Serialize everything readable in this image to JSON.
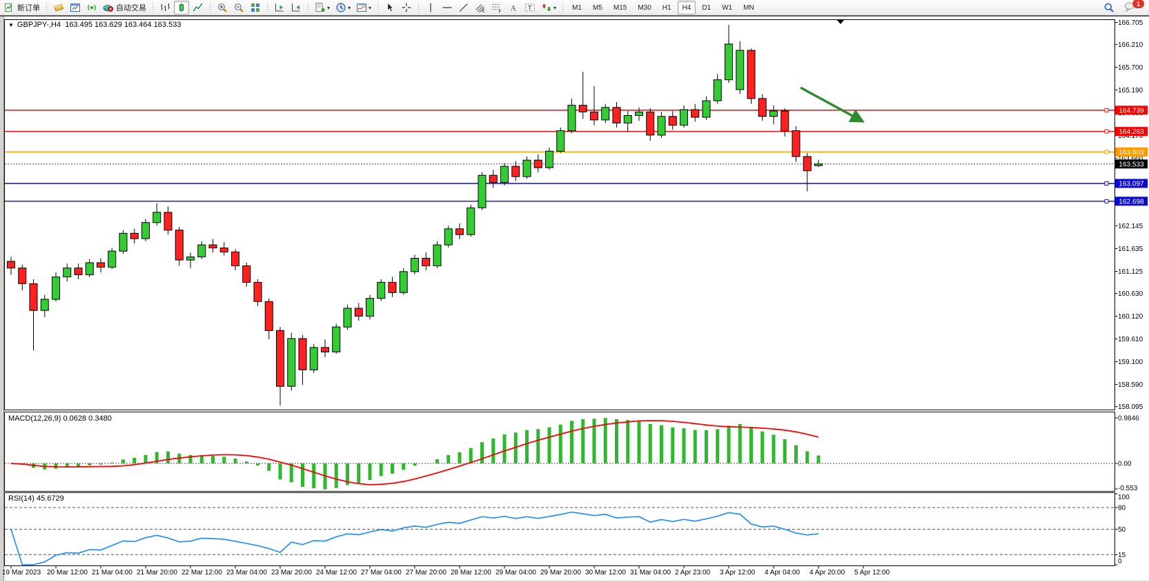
{
  "toolbar": {
    "new_order_label": "新订单",
    "auto_trading_label": "自动交易",
    "icon_groups": [
      [
        "profile",
        "market-window",
        "signal",
        "auto-trading"
      ],
      [
        "bar-chart",
        "candlestick-chart",
        "line-chart"
      ],
      [
        "zoom-in",
        "zoom-out",
        "tile-windows"
      ],
      [
        "shift-end",
        "auto-scroll"
      ],
      [
        "indicators",
        "periods",
        "templates"
      ],
      [
        "cursor",
        "crosshair"
      ],
      [
        "vertical-line",
        "horizontal-line",
        "trendline",
        "channel",
        "fibonacci",
        "text",
        "text-label",
        "arrows"
      ]
    ],
    "timeframes": [
      "M1",
      "M5",
      "M15",
      "M30",
      "H1",
      "H4",
      "D1",
      "W1",
      "MN"
    ],
    "active_timeframe": "H4",
    "active_chart_type": "candlestick-chart",
    "notification_badge": "1"
  },
  "chart": {
    "title_marker": "▼",
    "symbol_period": "GBPJPY-,H4",
    "ohlc_text": "163.495 163.629 163.464 163.533"
  },
  "indicators": {
    "macd_label": "MACD(12,26,9) 0.0628 0.3480",
    "rsi_label": "RSI(14) 45.6729"
  },
  "colors": {
    "bull": "#33cc33",
    "bear": "#ff2020",
    "outline": "#000000",
    "macd_hist": "#2db82d",
    "macd_signal": "#ff0000",
    "rsi_line": "#1e90ff",
    "level_red": "#ff0000",
    "level_orange": "#ff9900",
    "level_blue": "#0a0ad6",
    "current_badge": "#000000",
    "arrow": "#2e8b2e"
  },
  "chart_data": {
    "type": "candlestick",
    "symbol": "GBPJPY-",
    "period": "H4",
    "price_ticks": [
      "166.705",
      "166.210",
      "165.700",
      "165.190",
      "164.680",
      "164.170",
      "163.660",
      "162.145",
      "161.635",
      "161.125",
      "160.630",
      "160.120",
      "159.610",
      "159.100",
      "158.590",
      "158.095"
    ],
    "levels": [
      {
        "price": 164.739,
        "label": "164.739",
        "color_key": "level_red"
      },
      {
        "price": 164.263,
        "label": "164.263",
        "color_key": "level_red"
      },
      {
        "price": 163.803,
        "label": "163.803",
        "color_key": "level_orange"
      },
      {
        "price": 163.097,
        "label": "163.097",
        "color_key": "level_blue"
      },
      {
        "price": 162.698,
        "label": "162.698",
        "color_key": "level_blue"
      }
    ],
    "current_price": {
      "price": 163.533,
      "label": "163.533"
    },
    "macd_axis": [
      [
        "0.9846",
        0.9846
      ],
      [
        "0.00",
        0.0
      ],
      [
        "-0.553",
        -0.553
      ]
    ],
    "rsi_axis": [
      [
        "100",
        100
      ],
      [
        "80",
        80
      ],
      [
        "50",
        50
      ],
      [
        "15",
        15
      ],
      [
        "0",
        0
      ]
    ],
    "rsi_levels": [
      80,
      50,
      15
    ],
    "macd_params": [
      12,
      26,
      9
    ],
    "rsi_period": 14,
    "time_labels": [
      "19 Mar 2023",
      "20 Mar 12:00",
      "21 Mar 04:00",
      "21 Mar 20:00",
      "22 Mar 12:00",
      "23 Mar 04:00",
      "23 Mar 20:00",
      "24 Mar 12:00",
      "27 Mar 04:00",
      "27 Mar 20:00",
      "28 Mar 12:00",
      "29 Mar 04:00",
      "29 Mar 20:00",
      "30 Mar 12:00",
      "31 Mar 04:00",
      "2 Apr 23:00",
      "3 Apr 12:00",
      "4 Apr 04:00",
      "4 Apr 20:00",
      "5 Apr 12:00"
    ],
    "bars_per_label": 4,
    "ohlc": [
      [
        161.35,
        161.45,
        161.05,
        161.2
      ],
      [
        161.2,
        161.28,
        160.7,
        160.85
      ],
      [
        160.85,
        160.95,
        159.35,
        160.25
      ],
      [
        160.25,
        160.6,
        160.1,
        160.5
      ],
      [
        160.5,
        161.1,
        160.45,
        161.0
      ],
      [
        161.0,
        161.3,
        160.9,
        161.2
      ],
      [
        161.2,
        161.3,
        160.95,
        161.05
      ],
      [
        161.05,
        161.4,
        161.0,
        161.32
      ],
      [
        161.32,
        161.42,
        161.1,
        161.22
      ],
      [
        161.22,
        161.65,
        161.18,
        161.58
      ],
      [
        161.58,
        162.05,
        161.52,
        161.98
      ],
      [
        161.98,
        162.08,
        161.75,
        161.86
      ],
      [
        161.86,
        162.3,
        161.8,
        162.22
      ],
      [
        162.22,
        162.65,
        162.15,
        162.45
      ],
      [
        162.45,
        162.58,
        161.95,
        162.05
      ],
      [
        162.05,
        162.12,
        161.25,
        161.38
      ],
      [
        161.38,
        161.55,
        161.2,
        161.45
      ],
      [
        161.45,
        161.8,
        161.4,
        161.72
      ],
      [
        161.72,
        161.85,
        161.55,
        161.65
      ],
      [
        161.65,
        161.78,
        161.48,
        161.56
      ],
      [
        161.56,
        161.62,
        161.15,
        161.25
      ],
      [
        161.25,
        161.32,
        160.78,
        160.88
      ],
      [
        160.88,
        160.95,
        160.35,
        160.45
      ],
      [
        160.45,
        160.52,
        159.6,
        159.8
      ],
      [
        159.8,
        159.88,
        158.12,
        158.55
      ],
      [
        158.55,
        159.75,
        158.45,
        159.62
      ],
      [
        159.62,
        159.7,
        158.58,
        158.92
      ],
      [
        158.92,
        159.5,
        158.85,
        159.42
      ],
      [
        159.42,
        159.6,
        159.2,
        159.32
      ],
      [
        159.32,
        159.95,
        159.28,
        159.88
      ],
      [
        159.88,
        160.38,
        159.82,
        160.3
      ],
      [
        160.3,
        160.42,
        160.02,
        160.12
      ],
      [
        160.12,
        160.6,
        160.05,
        160.52
      ],
      [
        160.52,
        160.95,
        160.46,
        160.88
      ],
      [
        160.88,
        161.0,
        160.55,
        160.65
      ],
      [
        160.65,
        161.2,
        160.6,
        161.12
      ],
      [
        161.12,
        161.5,
        161.06,
        161.42
      ],
      [
        161.42,
        161.55,
        161.15,
        161.25
      ],
      [
        161.25,
        161.8,
        161.2,
        161.72
      ],
      [
        161.72,
        162.15,
        161.66,
        162.08
      ],
      [
        162.08,
        162.2,
        161.85,
        161.95
      ],
      [
        161.95,
        162.62,
        161.9,
        162.55
      ],
      [
        162.55,
        163.35,
        162.5,
        163.28
      ],
      [
        163.28,
        163.4,
        163.0,
        163.12
      ],
      [
        163.12,
        163.55,
        163.05,
        163.48
      ],
      [
        163.48,
        163.6,
        163.15,
        163.25
      ],
      [
        163.25,
        163.7,
        163.2,
        163.62
      ],
      [
        163.62,
        163.75,
        163.35,
        163.45
      ],
      [
        163.45,
        163.9,
        163.4,
        163.82
      ],
      [
        163.82,
        164.35,
        163.78,
        164.28
      ],
      [
        164.28,
        165.0,
        164.22,
        164.85
      ],
      [
        164.85,
        165.6,
        164.55,
        164.7
      ],
      [
        164.7,
        165.28,
        164.4,
        164.52
      ],
      [
        164.52,
        164.88,
        164.45,
        164.8
      ],
      [
        164.8,
        164.92,
        164.35,
        164.45
      ],
      [
        164.45,
        164.72,
        164.25,
        164.62
      ],
      [
        164.62,
        164.8,
        164.5,
        164.7
      ],
      [
        164.7,
        164.78,
        164.05,
        164.18
      ],
      [
        164.18,
        164.7,
        164.12,
        164.6
      ],
      [
        164.6,
        164.72,
        164.3,
        164.4
      ],
      [
        164.4,
        164.85,
        164.35,
        164.75
      ],
      [
        164.75,
        164.88,
        164.48,
        164.58
      ],
      [
        164.58,
        165.05,
        164.52,
        164.95
      ],
      [
        164.95,
        165.55,
        164.88,
        165.42
      ],
      [
        165.42,
        166.65,
        165.35,
        166.22
      ],
      [
        165.2,
        166.28,
        165.1,
        166.08
      ],
      [
        166.08,
        166.12,
        164.88,
        165.0
      ],
      [
        165.0,
        165.1,
        164.5,
        164.6
      ],
      [
        164.6,
        164.85,
        164.42,
        164.72
      ],
      [
        164.72,
        164.78,
        164.15,
        164.28
      ],
      [
        164.28,
        164.38,
        163.58,
        163.7
      ],
      [
        163.7,
        163.78,
        162.92,
        163.38
      ],
      [
        163.495,
        163.629,
        163.464,
        163.533
      ]
    ]
  }
}
